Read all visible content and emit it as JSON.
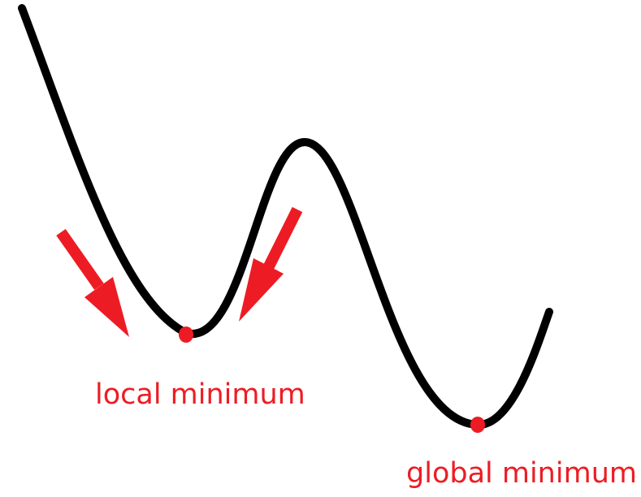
{
  "labels": {
    "local_minimum": "local minimum",
    "global_minimum": "global minimum"
  },
  "colors": {
    "curve": "#000000",
    "accent": "#ed1c24",
    "background": "#ffffff"
  }
}
